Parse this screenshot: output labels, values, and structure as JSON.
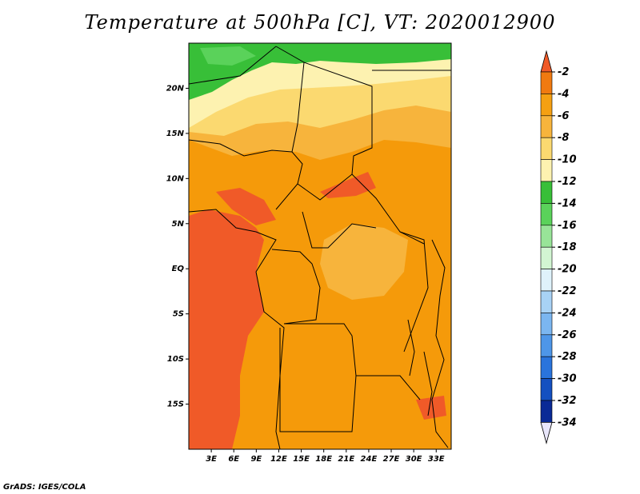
{
  "title": "Temperature at 500hPa [C], VT: 2020012900",
  "credit": "GrADS: IGES/COLA",
  "map": {
    "lon_range": [
      0,
      35
    ],
    "lat_range": [
      -20,
      25
    ],
    "lon_ticks": [
      {
        "value": 3,
        "label": "3E"
      },
      {
        "value": 6,
        "label": "6E"
      },
      {
        "value": 9,
        "label": "9E"
      },
      {
        "value": 12,
        "label": "12E"
      },
      {
        "value": 15,
        "label": "15E"
      },
      {
        "value": 18,
        "label": "18E"
      },
      {
        "value": 21,
        "label": "21E"
      },
      {
        "value": 24,
        "label": "24E"
      },
      {
        "value": 27,
        "label": "27E"
      },
      {
        "value": 30,
        "label": "30E"
      },
      {
        "value": 33,
        "label": "33E"
      }
    ],
    "lat_ticks": [
      {
        "value": 20,
        "label": "20N"
      },
      {
        "value": 15,
        "label": "15N"
      },
      {
        "value": 10,
        "label": "10N"
      },
      {
        "value": 5,
        "label": "5N"
      },
      {
        "value": 0,
        "label": "EQ"
      },
      {
        "value": -5,
        "label": "5S"
      },
      {
        "value": -10,
        "label": "10S"
      },
      {
        "value": -15,
        "label": "15S"
      }
    ]
  },
  "colorbar": {
    "levels": [
      "-2",
      "-4",
      "-6",
      "-8",
      "-10",
      "-12",
      "-14",
      "-16",
      "-18",
      "-20",
      "-22",
      "-24",
      "-26",
      "-28",
      "-30",
      "-32",
      "-34"
    ],
    "colors": [
      "#f05a28",
      "#f07a10",
      "#f5a012",
      "#f7b43c",
      "#fbd970",
      "#fdf2b0",
      "#38bf38",
      "#5ad25a",
      "#98e498",
      "#d2f5d2",
      "#dff2fb",
      "#a8d2f5",
      "#7bb6f0",
      "#4e96e8",
      "#2a74dc",
      "#1450c0",
      "#0a2a96",
      "#0a0a64",
      "#e8e6fb"
    ]
  },
  "field_colors": {
    "hot": "#f05a28",
    "warm": "#f59a0a",
    "mild": "#f7b43c",
    "cool": "#fbd970",
    "cooler": "#fdf2b0",
    "green": "#38bf38",
    "lightgreen": "#5ad25a"
  }
}
